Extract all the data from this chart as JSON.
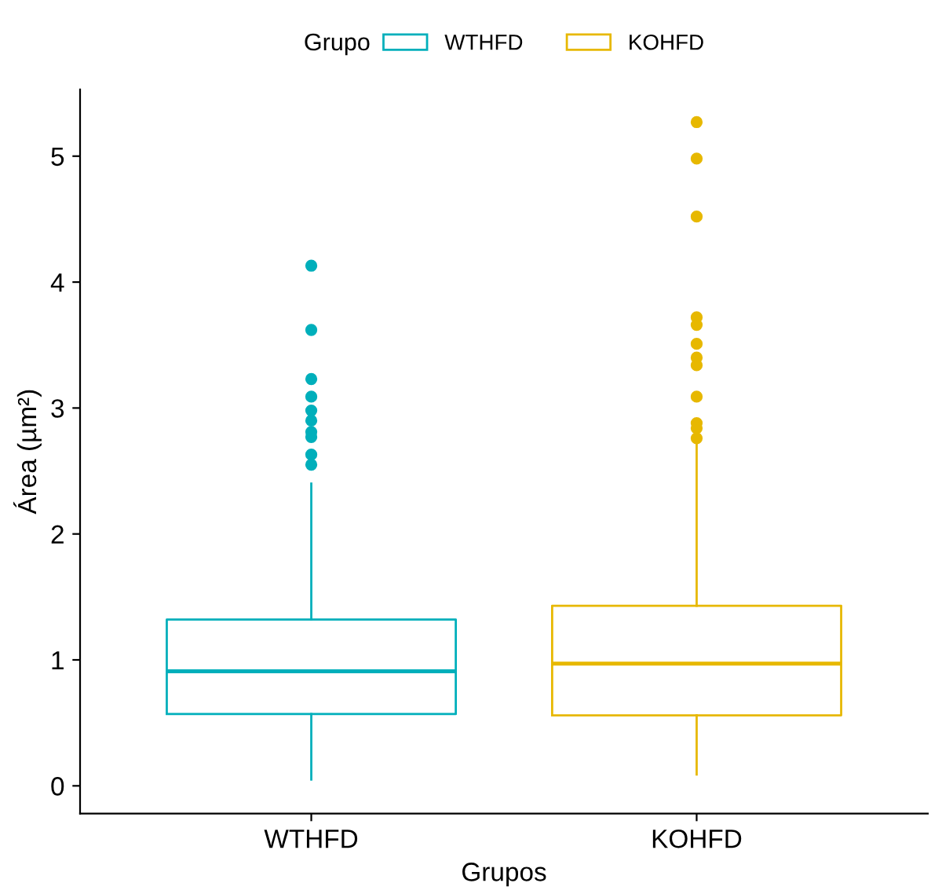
{
  "chart_data": {
    "type": "box",
    "xlabel": "Grupos",
    "ylabel": "Área (µm²)",
    "legend_title": "Grupo",
    "legend": "top",
    "grid": false,
    "categories": [
      "WTHFD",
      "KOHFD"
    ],
    "ylim": [
      -0.22,
      5.53
    ],
    "yticks": [
      0,
      1,
      2,
      3,
      4,
      5
    ],
    "series": [
      {
        "name": "WTHFD",
        "color": "#00afbb",
        "boxes": [
          {
            "low": 0.05,
            "q1": 0.57,
            "median": 0.91,
            "q3": 1.32,
            "high": 2.4,
            "outliers": [
              4.13,
              3.62,
              3.23,
              3.09,
              2.98,
              2.9,
              2.81,
              2.77,
              2.63,
              2.55
            ]
          },
          null
        ]
      },
      {
        "name": "KOHFD",
        "color": "#e7b800",
        "boxes": [
          null,
          {
            "low": 0.09,
            "q1": 0.56,
            "median": 0.97,
            "q3": 1.43,
            "high": 2.75,
            "outliers": [
              5.27,
              4.98,
              4.52,
              3.72,
              3.66,
              3.51,
              3.4,
              3.34,
              3.09,
              2.88,
              2.84,
              2.76
            ]
          }
        ]
      }
    ]
  }
}
